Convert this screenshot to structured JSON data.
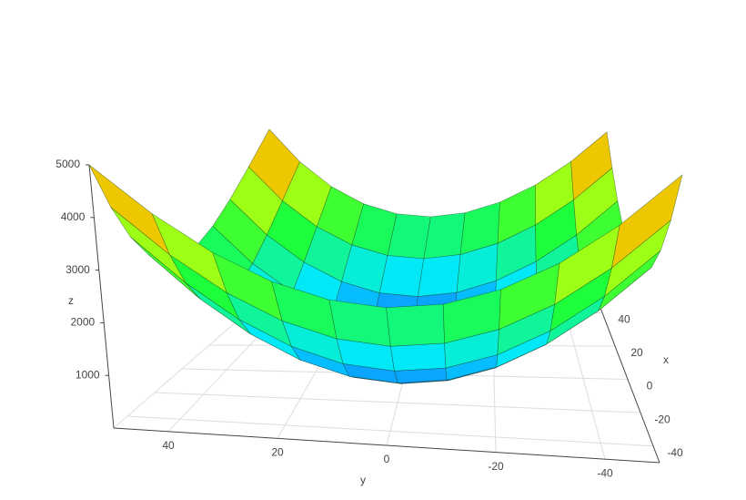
{
  "chart_data": {
    "type": "surface",
    "x": [
      -50,
      -40,
      -30,
      -20,
      -10,
      0,
      10,
      20,
      30,
      40,
      50
    ],
    "y": [
      -50,
      -40,
      -30,
      -20,
      -10,
      0,
      10,
      20,
      30,
      40,
      50
    ],
    "z": [
      [
        5000,
        4100,
        3400,
        2900,
        2600,
        2500,
        2600,
        2900,
        3400,
        4100,
        5000
      ],
      [
        4100,
        3200,
        2500,
        2000,
        1700,
        1600,
        1700,
        2000,
        2500,
        3200,
        4100
      ],
      [
        3400,
        2500,
        1800,
        1300,
        1000,
        900,
        1000,
        1300,
        1800,
        2500,
        3400
      ],
      [
        2900,
        2000,
        1300,
        800,
        500,
        400,
        500,
        800,
        1300,
        2000,
        2900
      ],
      [
        2600,
        1700,
        1000,
        500,
        200,
        100,
        200,
        500,
        1000,
        1700,
        2600
      ],
      [
        2500,
        1600,
        900,
        400,
        100,
        0,
        100,
        400,
        900,
        1600,
        2500
      ],
      [
        2600,
        1700,
        1000,
        500,
        200,
        100,
        200,
        500,
        1000,
        1700,
        2600
      ],
      [
        2900,
        2000,
        1300,
        800,
        500,
        400,
        500,
        800,
        1300,
        2000,
        2900
      ],
      [
        3400,
        2500,
        1800,
        1300,
        1000,
        900,
        1000,
        1300,
        1800,
        2500,
        3400
      ],
      [
        4100,
        3200,
        2500,
        2000,
        1700,
        1600,
        1700,
        2000,
        2500,
        3200,
        4100
      ],
      [
        5000,
        4100,
        3400,
        2900,
        2600,
        2500,
        2600,
        2900,
        3400,
        4100,
        5000
      ]
    ],
    "colorscale": [
      "#1450ff",
      "#00e8ff",
      "#1eff3c",
      "#e6ff00",
      "#ff3c00"
    ],
    "xlabel": "x",
    "ylabel": "y",
    "zlabel": "z",
    "xlim": [
      -50,
      50
    ],
    "ylim": [
      -50,
      50
    ],
    "zlim": [
      0,
      5000
    ],
    "xticks": [
      -40,
      -20,
      0,
      20,
      40
    ],
    "yticks": [
      -40,
      -20,
      0,
      20,
      40
    ],
    "zticks": [
      1000,
      2000,
      3000,
      4000,
      5000
    ],
    "grid": true
  }
}
